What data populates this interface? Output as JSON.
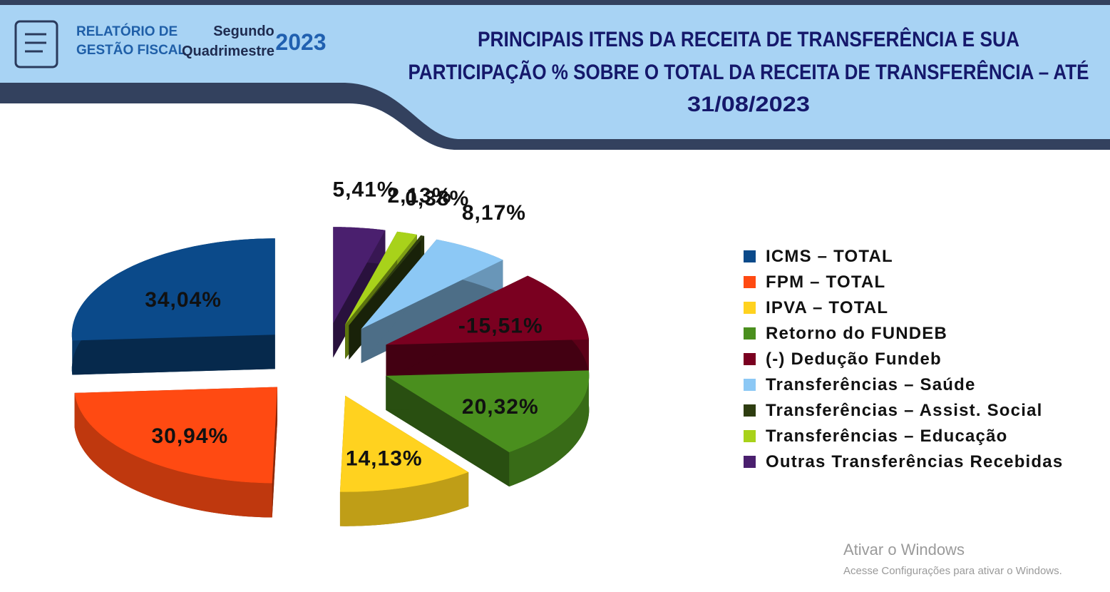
{
  "header": {
    "logo_line1": "RELATÓRIO DE",
    "logo_line2": "GESTÃO FISCAL",
    "period_line1": "Segundo",
    "period_line2": "Quadrimestre",
    "year": "2023"
  },
  "chart_data": {
    "type": "pie",
    "title": [
      "PRINCIPAIS ITENS DA RECEITA DE TRANSFERÊNCIA E SUA",
      "PARTICIPAÇÃO % SOBRE O TOTAL DA RECEITA DE TRANSFERÊNCIA – ATÉ",
      "31/08/2023"
    ],
    "categories": [
      "ICMS – TOTAL",
      "FPM – TOTAL",
      "IPVA – TOTAL",
      "Retorno do FUNDEB",
      "(-) Dedução Fundeb",
      "Transferências – Saúde",
      "Transferências – Assist. Social",
      "Transferências – Educação",
      "Outras Transferências Recebidas"
    ],
    "values": [
      34.04,
      30.94,
      14.13,
      20.32,
      -15.51,
      8.17,
      0.38,
      2.13,
      5.41
    ],
    "value_labels": [
      "34,04%",
      "30,94%",
      "14,13%",
      "20,32%",
      "-15,51%",
      "8,17%",
      "0,38%",
      "2,13%",
      "5,41%"
    ],
    "colors": [
      "#0b4a8a",
      "#ff4a12",
      "#ffd21f",
      "#4a8f1e",
      "#7a0020",
      "#8cc8f5",
      "#2e3d10",
      "#a8d21a",
      "#4a1f6e"
    ],
    "legend": "right"
  },
  "watermark": {
    "line1": "Ativar o Windows",
    "line2": "Acesse Configurações para ativar o Windows."
  }
}
